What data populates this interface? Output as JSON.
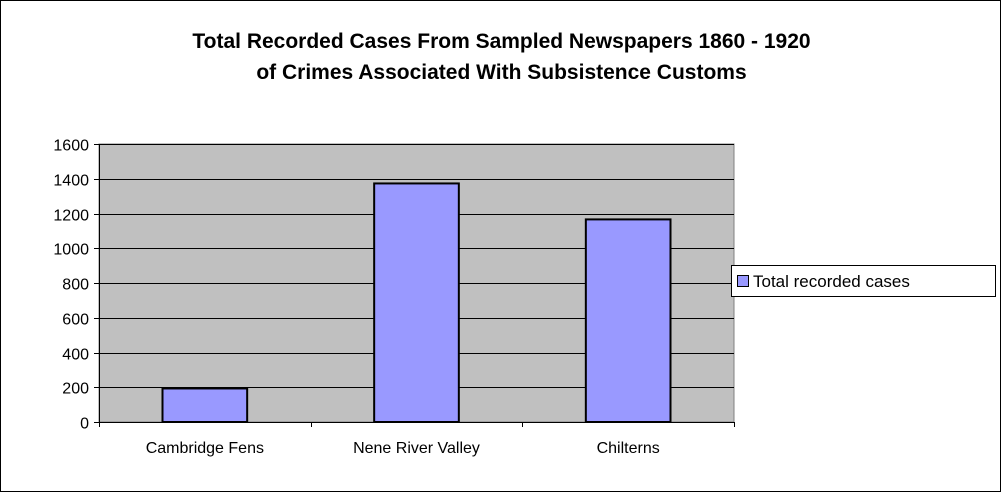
{
  "chart_data": {
    "type": "bar",
    "title_lines": [
      "Total Recorded Cases From Sampled Newspapers 1860 - 1920",
      "of Crimes Associated With Subsistence Customs"
    ],
    "categories": [
      "Cambridge Fens",
      "Nene River Valley",
      "Chilterns"
    ],
    "series": [
      {
        "name": "Total recorded cases",
        "values": [
          193,
          1373,
          1166
        ],
        "color": "#9999ff"
      }
    ],
    "xlabel": "",
    "ylabel": "",
    "ylim": [
      0,
      1600
    ],
    "yticks": [
      0,
      200,
      400,
      600,
      800,
      1000,
      1200,
      1400,
      1600
    ],
    "grid": true,
    "plot_background": "#c0c0c0",
    "legend_position": "right"
  }
}
